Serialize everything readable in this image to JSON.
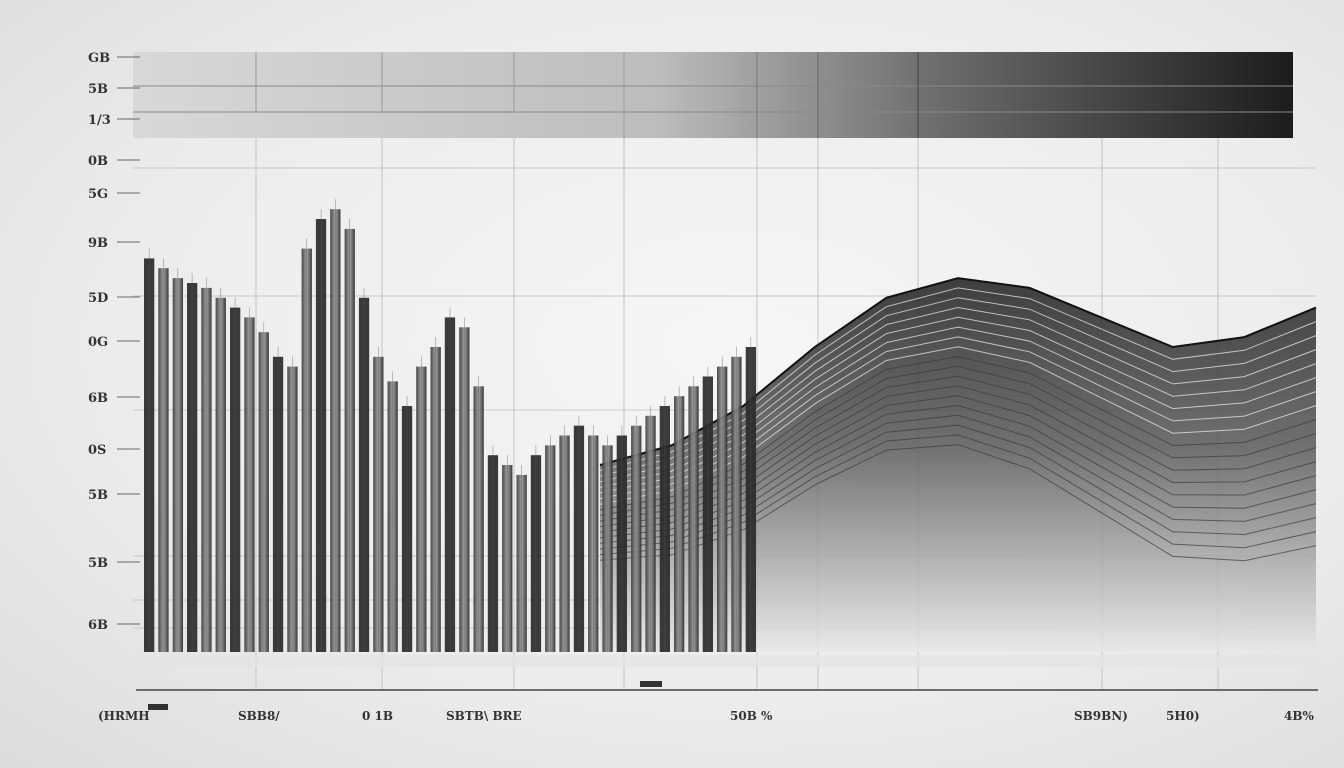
{
  "chart_data": {
    "type": "bar",
    "title": "",
    "xlabel": "",
    "ylabel": "",
    "y_tick_labels": [
      "GB",
      "5B",
      "1/3",
      "0B",
      "5G",
      "9B",
      "5D",
      "0G",
      "6B",
      "0S",
      "5B",
      "5B",
      "6B"
    ],
    "x_tick_labels": [
      "(HRMH",
      "SBB8/",
      "0 1B",
      "SBTB\\ BRE",
      "50B %",
      "SB9BN)",
      "5H0)",
      "4B%"
    ],
    "grid": true,
    "legend": "none",
    "ylim": [
      0,
      100
    ],
    "series": [
      {
        "values": [
          80,
          78,
          76,
          75,
          74,
          72,
          70,
          68,
          65,
          60,
          58,
          82,
          88,
          90,
          86,
          72,
          60,
          55,
          50,
          58,
          62,
          68,
          66,
          54,
          40,
          38,
          36,
          40,
          42,
          44,
          46,
          44,
          42,
          44,
          46,
          48,
          50,
          52,
          54,
          56,
          58,
          60,
          62
        ]
      }
    ],
    "wave_series": [
      {
        "x": [
          0,
          10,
          20,
          30,
          40,
          50,
          60,
          70,
          80,
          90,
          100
        ],
        "values": [
          38,
          42,
          50,
          62,
          72,
          76,
          74,
          68,
          62,
          64,
          70
        ]
      }
    ]
  }
}
